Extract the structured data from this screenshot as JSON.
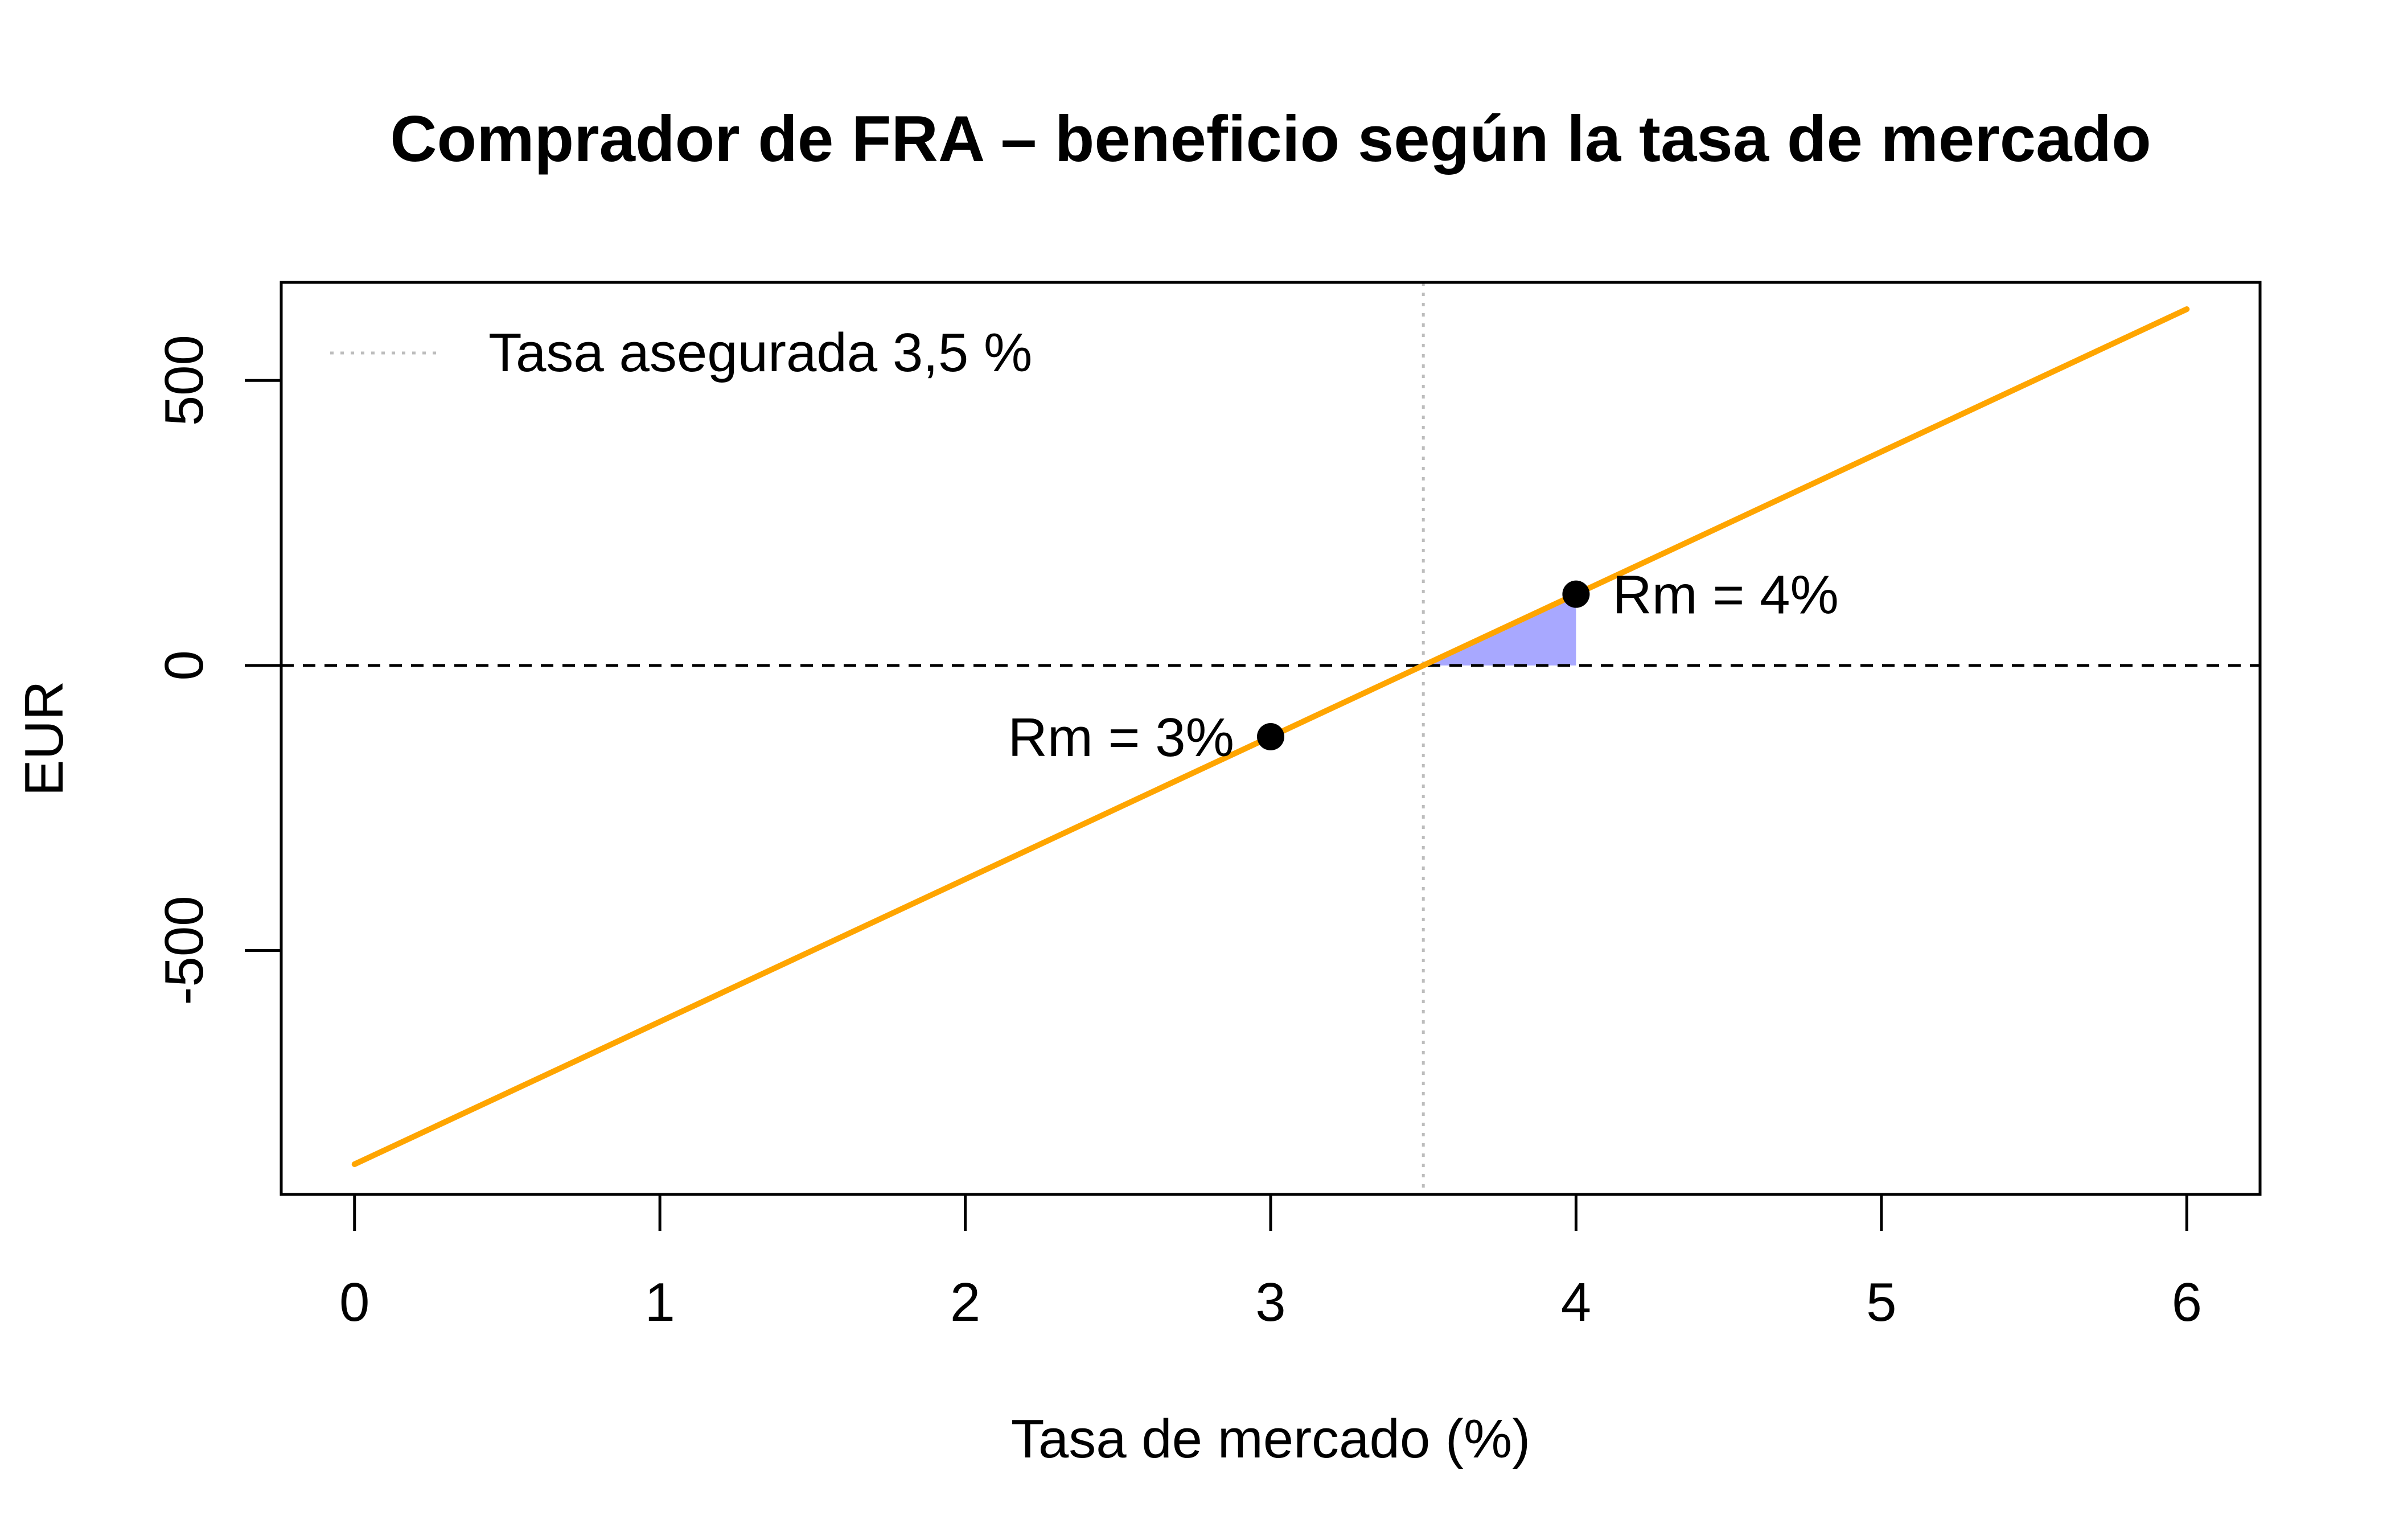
{
  "chart_data": {
    "type": "line",
    "title": "Comprador de FRA – beneficio según la tasa de mercado",
    "xlabel": "Tasa de mercado (%)",
    "ylabel": "EUR",
    "xlim": [
      -0.24,
      6.24
    ],
    "ylim": [
      -928,
      672
    ],
    "x_ticks": [
      0,
      1,
      2,
      3,
      4,
      5,
      6
    ],
    "x_tick_labels": [
      "0",
      "1",
      "2",
      "3",
      "4",
      "5",
      "6"
    ],
    "y_ticks": [
      -500,
      0,
      500
    ],
    "y_tick_labels": [
      "-500",
      "0",
      "500"
    ],
    "grid": false,
    "legend_position": "top-left",
    "series": [
      {
        "x": [
          0,
          6
        ],
        "y": [
          -875,
          625
        ],
        "color": "#FFA500",
        "line_style": "solid"
      }
    ],
    "reference_lines": [
      {
        "orientation": "vertical",
        "value": 3.5,
        "name": "Tasa asegurada 3,5 %",
        "color": "#BDBDBD",
        "line_style": "dotted",
        "in_legend": true
      },
      {
        "orientation": "horizontal",
        "value": 0,
        "color": "#000000",
        "line_style": "dashed",
        "in_legend": false
      }
    ],
    "shaded_region": {
      "x_from": 3.5,
      "x_to": 4,
      "between": "line-and-zero",
      "color": "#A8A8FF"
    },
    "points": [
      {
        "x": 3,
        "y": -125,
        "label": "Rm = 3%",
        "label_side": "left"
      },
      {
        "x": 4,
        "y": 125,
        "label": "Rm = 4%",
        "label_side": "right"
      }
    ],
    "legend": {
      "entries": [
        {
          "label": "Tasa asegurada 3,5 %",
          "color": "#BDBDBD",
          "line_style": "dotted"
        }
      ]
    }
  }
}
